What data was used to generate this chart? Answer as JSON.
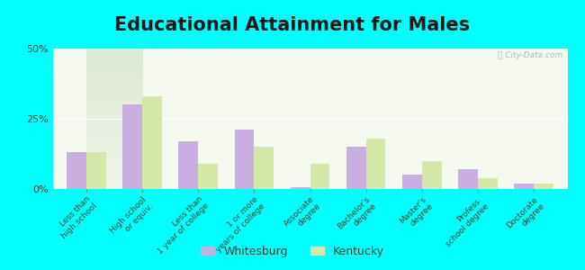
{
  "title": "Educational Attainment for Males",
  "categories": [
    "Less than\nhigh school",
    "High school\nor equiv.",
    "Less than\n1 year of college",
    "1 or more\nyears of college",
    "Associate\ndegree",
    "Bachelor's\ndegree",
    "Master's\ndegree",
    "Profess.\nschool degree",
    "Doctorate\ndegree"
  ],
  "whitesburg": [
    13,
    30,
    17,
    21,
    0.5,
    15,
    5,
    7,
    2
  ],
  "kentucky": [
    13,
    33,
    9,
    15,
    9,
    18,
    10,
    4,
    2
  ],
  "whitesburg_color": "#c9aee0",
  "kentucky_color": "#d4e8a8",
  "background_plot_top": "#e8ede0",
  "background_plot_bottom": "#f5f8ee",
  "background_fig": "#00ffff",
  "ylim": [
    0,
    50
  ],
  "yticks": [
    0,
    25,
    50
  ],
  "ytick_labels": [
    "0%",
    "25%",
    "50%"
  ],
  "bar_width": 0.35,
  "title_fontsize": 15,
  "tick_label_fontsize": 6.5,
  "tick_label_color": "#334433"
}
